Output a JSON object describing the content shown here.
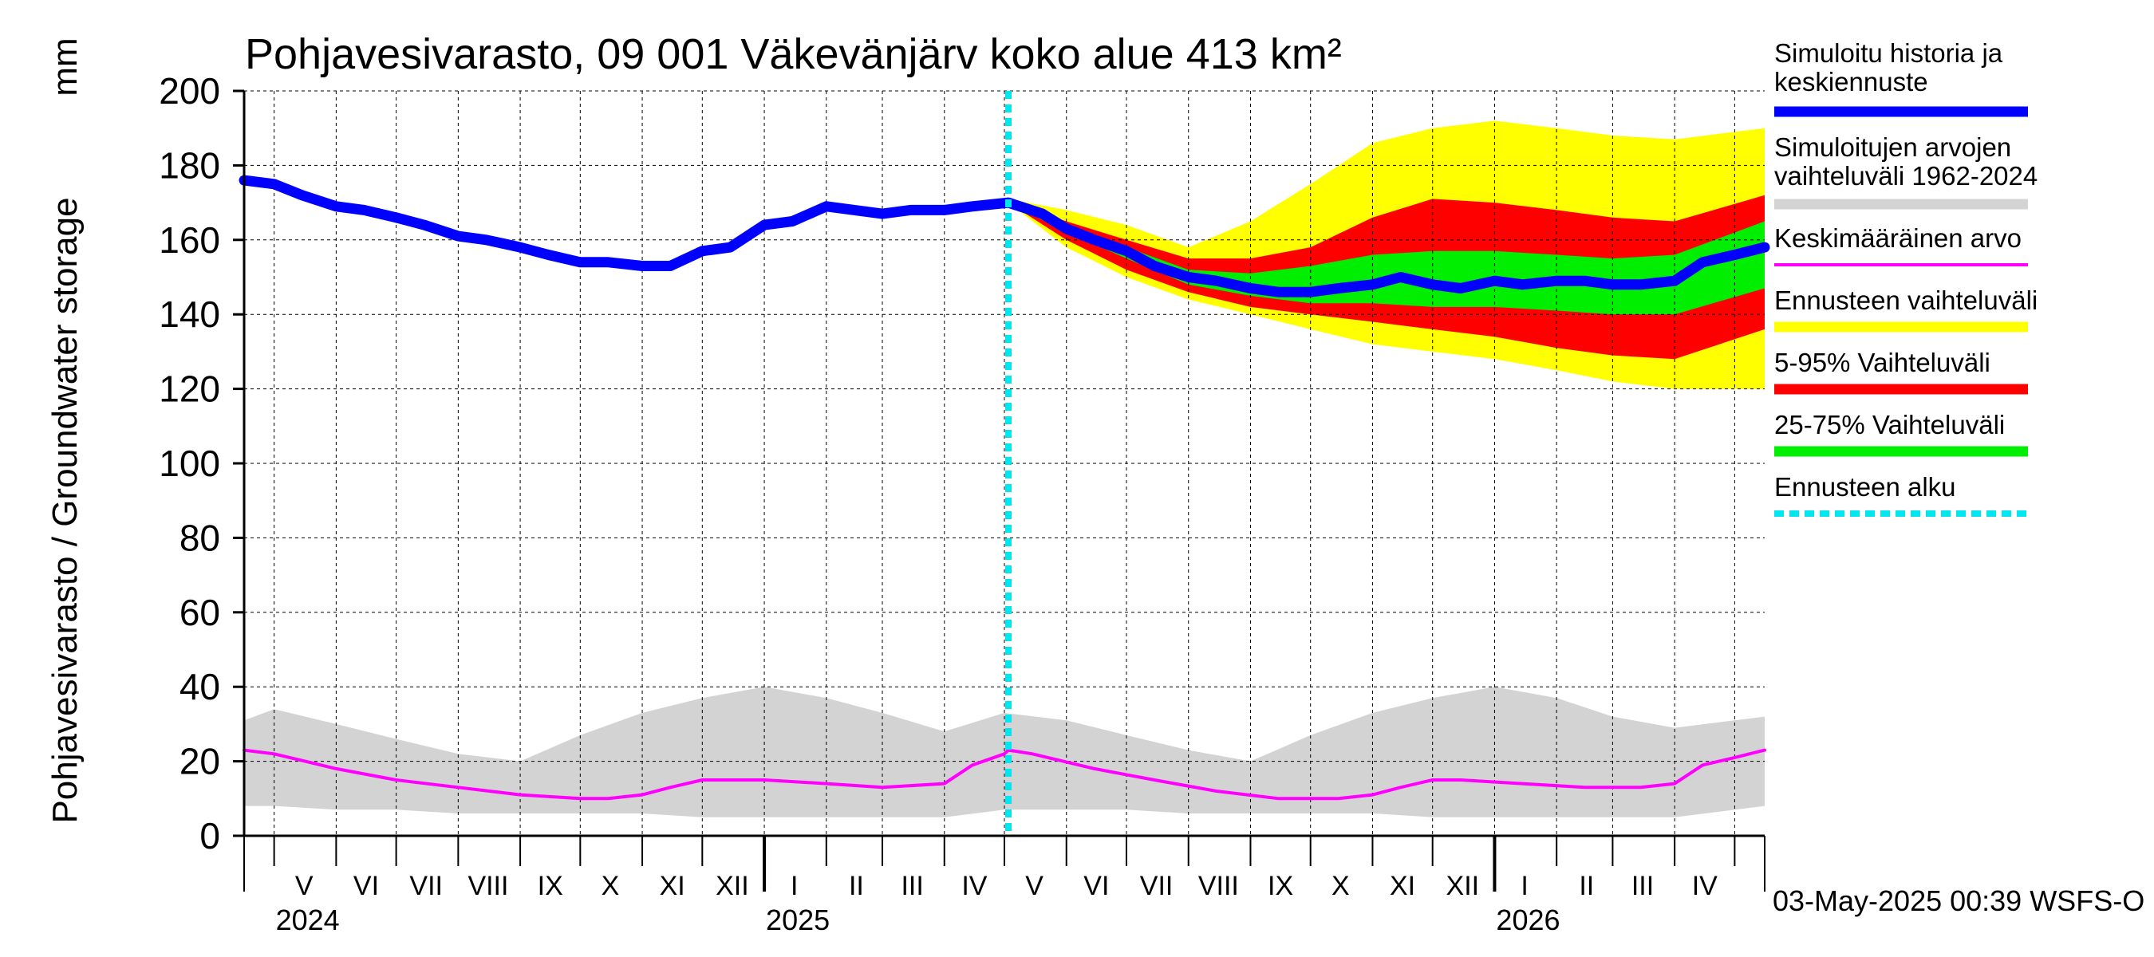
{
  "chart_data": {
    "type": "area",
    "title": "Pohjavesivarasto, 09 001 Väkevänjärv koko alue 413 km²",
    "unit_label": "mm",
    "ylabel": "Pohjavesivarasto / Groundwater storage",
    "ylim": [
      0,
      200
    ],
    "yticks": [
      "0",
      "20",
      "40",
      "60",
      "80",
      "100",
      "120",
      "140",
      "160",
      "180",
      "200"
    ],
    "x_start": "2024-04-16",
    "x_end": "2026-05-16",
    "forecast_start": "2025-05-03",
    "months": [
      {
        "label": "V",
        "date": "2024-05-16"
      },
      {
        "label": "VI",
        "date": "2024-06-16"
      },
      {
        "label": "VII",
        "date": "2024-07-16"
      },
      {
        "label": "VIII",
        "date": "2024-08-16"
      },
      {
        "label": "IX",
        "date": "2024-09-16"
      },
      {
        "label": "X",
        "date": "2024-10-16"
      },
      {
        "label": "XI",
        "date": "2024-11-16"
      },
      {
        "label": "XII",
        "date": "2024-12-16"
      },
      {
        "label": "I",
        "date": "2025-01-16"
      },
      {
        "label": "II",
        "date": "2025-02-16"
      },
      {
        "label": "III",
        "date": "2025-03-16"
      },
      {
        "label": "IV",
        "date": "2025-04-16"
      },
      {
        "label": "V",
        "date": "2025-05-16"
      },
      {
        "label": "VI",
        "date": "2025-06-16"
      },
      {
        "label": "VII",
        "date": "2025-07-16"
      },
      {
        "label": "VIII",
        "date": "2025-08-16"
      },
      {
        "label": "IX",
        "date": "2025-09-16"
      },
      {
        "label": "X",
        "date": "2025-10-16"
      },
      {
        "label": "XI",
        "date": "2025-11-16"
      },
      {
        "label": "XII",
        "date": "2025-12-16"
      },
      {
        "label": "I",
        "date": "2026-01-16"
      },
      {
        "label": "II",
        "date": "2026-02-16"
      },
      {
        "label": "III",
        "date": "2026-03-16"
      },
      {
        "label": "IV",
        "date": "2026-04-16"
      }
    ],
    "years": [
      {
        "label": "2024",
        "date": "2024-05-01"
      },
      {
        "label": "2025",
        "date": "2025-01-01"
      },
      {
        "label": "2026",
        "date": "2026-01-01"
      }
    ],
    "series": {
      "history_and_median_forecast": {
        "name": "Simuloitu historia ja keskiennuste",
        "color": "#0000ff",
        "points": [
          [
            "2024-04-16",
            176
          ],
          [
            "2024-05-01",
            175
          ],
          [
            "2024-05-15",
            172
          ],
          [
            "2024-06-01",
            169
          ],
          [
            "2024-06-15",
            168
          ],
          [
            "2024-07-01",
            166
          ],
          [
            "2024-07-15",
            164
          ],
          [
            "2024-08-01",
            161
          ],
          [
            "2024-08-15",
            160
          ],
          [
            "2024-09-01",
            158
          ],
          [
            "2024-09-15",
            156
          ],
          [
            "2024-10-01",
            154
          ],
          [
            "2024-10-15",
            154
          ],
          [
            "2024-11-01",
            153
          ],
          [
            "2024-11-15",
            153
          ],
          [
            "2024-12-01",
            157
          ],
          [
            "2024-12-15",
            158
          ],
          [
            "2025-01-01",
            164
          ],
          [
            "2025-01-15",
            165
          ],
          [
            "2025-02-01",
            169
          ],
          [
            "2025-02-15",
            168
          ],
          [
            "2025-03-01",
            167
          ],
          [
            "2025-03-15",
            168
          ],
          [
            "2025-04-01",
            168
          ],
          [
            "2025-04-15",
            169
          ],
          [
            "2025-05-03",
            170
          ],
          [
            "2025-05-20",
            167
          ],
          [
            "2025-06-01",
            163
          ],
          [
            "2025-06-15",
            160
          ],
          [
            "2025-07-01",
            157
          ],
          [
            "2025-07-15",
            153
          ],
          [
            "2025-08-01",
            150
          ],
          [
            "2025-08-15",
            149
          ],
          [
            "2025-09-01",
            147
          ],
          [
            "2025-09-15",
            146
          ],
          [
            "2025-10-01",
            146
          ],
          [
            "2025-10-15",
            147
          ],
          [
            "2025-11-01",
            148
          ],
          [
            "2025-11-15",
            150
          ],
          [
            "2025-12-01",
            148
          ],
          [
            "2025-12-15",
            147
          ],
          [
            "2026-01-01",
            149
          ],
          [
            "2026-01-15",
            148
          ],
          [
            "2026-02-01",
            149
          ],
          [
            "2026-02-15",
            149
          ],
          [
            "2026-03-01",
            148
          ],
          [
            "2026-03-15",
            148
          ],
          [
            "2026-04-01",
            149
          ],
          [
            "2026-04-15",
            154
          ],
          [
            "2026-05-01",
            156
          ],
          [
            "2026-05-16",
            158
          ]
        ]
      },
      "mean": {
        "name": "Keskimääräinen arvo",
        "color": "#ff00ff",
        "points": [
          [
            "2024-04-16",
            23
          ],
          [
            "2024-05-01",
            22
          ],
          [
            "2024-06-01",
            18
          ],
          [
            "2024-07-01",
            15
          ],
          [
            "2024-08-01",
            13
          ],
          [
            "2024-09-01",
            11
          ],
          [
            "2024-10-01",
            10
          ],
          [
            "2024-10-15",
            10
          ],
          [
            "2024-11-01",
            11
          ],
          [
            "2024-11-15",
            13
          ],
          [
            "2024-12-01",
            15
          ],
          [
            "2024-12-15",
            15
          ],
          [
            "2025-01-01",
            15
          ],
          [
            "2025-02-01",
            14
          ],
          [
            "2025-03-01",
            13
          ],
          [
            "2025-04-01",
            14
          ],
          [
            "2025-04-15",
            19
          ],
          [
            "2025-05-01",
            22
          ],
          [
            "2025-05-03",
            23
          ],
          [
            "2025-05-15",
            22
          ],
          [
            "2025-06-15",
            18
          ],
          [
            "2025-07-15",
            15
          ],
          [
            "2025-08-15",
            12
          ],
          [
            "2025-09-15",
            10
          ],
          [
            "2025-10-15",
            10
          ],
          [
            "2025-11-01",
            11
          ],
          [
            "2025-11-15",
            13
          ],
          [
            "2025-12-01",
            15
          ],
          [
            "2025-12-15",
            15
          ],
          [
            "2026-01-15",
            14
          ],
          [
            "2026-02-15",
            13
          ],
          [
            "2026-03-15",
            13
          ],
          [
            "2026-04-01",
            14
          ],
          [
            "2026-04-15",
            19
          ],
          [
            "2026-05-01",
            21
          ],
          [
            "2026-05-16",
            23
          ]
        ]
      },
      "historical_range": {
        "name": "Simuloitujen arvojen vaihteluväli 1962-2024",
        "color": "#d3d3d3",
        "dates": [
          "2024-04-16",
          "2024-05-01",
          "2024-06-01",
          "2024-07-01",
          "2024-08-01",
          "2024-09-01",
          "2024-10-01",
          "2024-11-01",
          "2024-12-01",
          "2025-01-01",
          "2025-02-01",
          "2025-03-01",
          "2025-04-01",
          "2025-05-01",
          "2025-06-01",
          "2025-07-01",
          "2025-08-01",
          "2025-09-01",
          "2025-10-01",
          "2025-11-01",
          "2025-12-01",
          "2026-01-01",
          "2026-02-01",
          "2026-03-01",
          "2026-04-01",
          "2026-05-16"
        ],
        "upper": [
          31,
          34,
          30,
          26,
          22,
          20,
          27,
          33,
          37,
          40,
          37,
          33,
          28,
          33,
          31,
          27,
          23,
          20,
          27,
          33,
          37,
          40,
          37,
          32,
          29,
          32
        ],
        "lower": [
          8,
          8,
          7,
          7,
          6,
          6,
          6,
          6,
          5,
          5,
          5,
          5,
          5,
          7,
          7,
          7,
          6,
          6,
          6,
          6,
          5,
          5,
          5,
          5,
          5,
          8
        ]
      },
      "forecast_range": {
        "name": "Ennusteen vaihteluväli",
        "color": "#ffff00",
        "dates": [
          "2025-05-03",
          "2025-06-01",
          "2025-07-01",
          "2025-08-01",
          "2025-09-01",
          "2025-10-01",
          "2025-11-01",
          "2025-12-01",
          "2026-01-01",
          "2026-02-01",
          "2026-03-01",
          "2026-04-01",
          "2026-05-16"
        ],
        "upper": [
          171,
          168,
          164,
          158,
          165,
          175,
          186,
          190,
          192,
          190,
          188,
          187,
          190
        ],
        "lower": [
          170,
          158,
          150,
          144,
          140,
          136,
          132,
          130,
          128,
          125,
          122,
          120,
          120
        ]
      },
      "range_5_95": {
        "name": "5-95% Vaihteluväli",
        "color": "#ff0000",
        "dates": [
          "2025-05-03",
          "2025-06-01",
          "2025-07-01",
          "2025-08-01",
          "2025-09-01",
          "2025-10-01",
          "2025-11-01",
          "2025-12-01",
          "2026-01-01",
          "2026-02-01",
          "2026-03-01",
          "2026-04-01",
          "2026-05-16"
        ],
        "upper": [
          170,
          165,
          160,
          155,
          155,
          158,
          166,
          171,
          170,
          168,
          166,
          165,
          172
        ],
        "lower": [
          170,
          160,
          152,
          146,
          142,
          140,
          138,
          136,
          134,
          131,
          129,
          128,
          136
        ]
      },
      "range_25_75": {
        "name": "25-75% Vaihteluväli",
        "color": "#00ee00",
        "dates": [
          "2025-05-03",
          "2025-06-01",
          "2025-07-01",
          "2025-08-01",
          "2025-09-01",
          "2025-10-01",
          "2025-11-01",
          "2025-12-01",
          "2026-01-01",
          "2026-02-01",
          "2026-03-01",
          "2026-04-01",
          "2026-05-16"
        ],
        "upper": [
          170,
          163,
          158,
          152,
          151,
          153,
          156,
          157,
          157,
          156,
          155,
          156,
          165
        ],
        "lower": [
          170,
          162,
          155,
          148,
          145,
          143,
          143,
          142,
          142,
          141,
          140,
          140,
          147
        ]
      }
    },
    "legend": [
      {
        "label": "Simuloitu historia ja keskiennuste",
        "color": "#0000ff",
        "style": "thick"
      },
      {
        "label": "Simuloitujen arvojen vaihteluväli 1962-2024",
        "color": "#d3d3d3",
        "style": "thick"
      },
      {
        "label": "Keskimääräinen arvo",
        "color": "#ff00ff",
        "style": "thin"
      },
      {
        "label": "Ennusteen vaihteluväli",
        "color": "#ffff00",
        "style": "thick"
      },
      {
        "label": "5-95% Vaihteluväli",
        "color": "#ff0000",
        "style": "thick"
      },
      {
        "label": "25-75% Vaihteluväli",
        "color": "#00ee00",
        "style": "thick"
      },
      {
        "label": "Ennusteen alku",
        "color": "#00e5ee",
        "style": "dashed"
      }
    ],
    "footer": "03-May-2025 00:39 WSFS-O"
  }
}
